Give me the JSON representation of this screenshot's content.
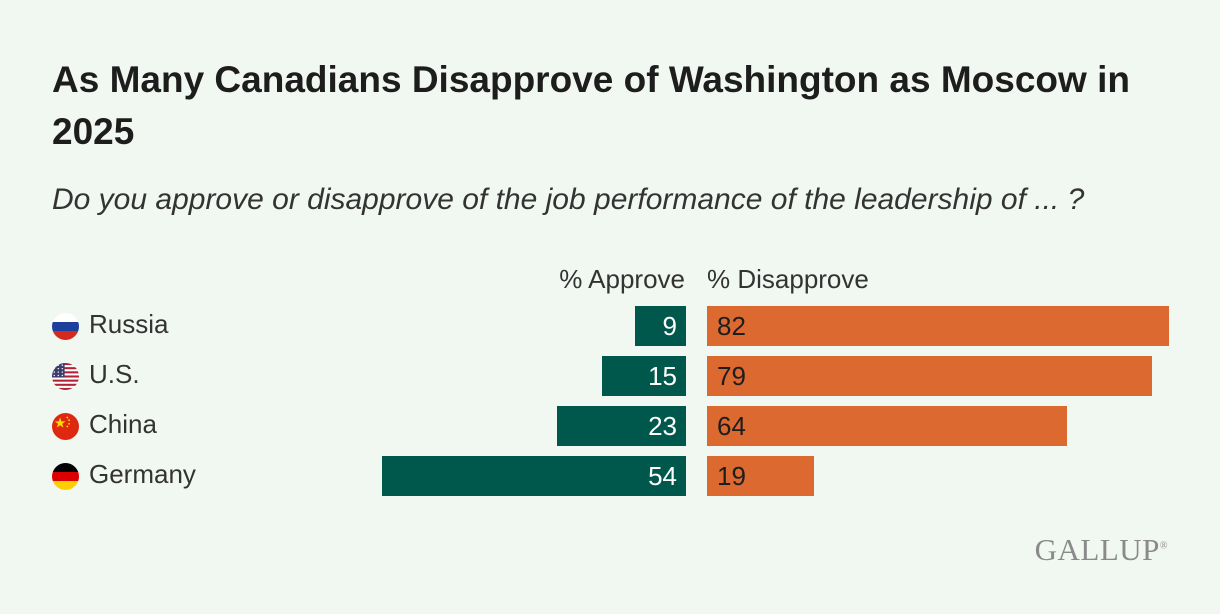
{
  "title": "As Many Canadians Disapprove of Washington as Moscow in 2025",
  "subtitle": "Do you approve or disapprove of the job performance of the leadership of ... ?",
  "brand": "GALLUP",
  "colors": {
    "approve": "#00574c",
    "disapprove": "#dc6930",
    "background": "#f1f7f1"
  },
  "chart_data": {
    "type": "bar",
    "orientation": "horizontal-diverging",
    "title": "As Many Canadians Disapprove of Washington as Moscow in 2025",
    "subtitle": "Do you approve or disapprove of the job performance of the leadership of ... ?",
    "categories": [
      "Russia",
      "U.S.",
      "China",
      "Germany"
    ],
    "flag_icons": [
      "russia-flag-icon",
      "us-flag-icon",
      "china-flag-icon",
      "germany-flag-icon"
    ],
    "series": [
      {
        "name": "% Approve",
        "values": [
          9,
          15,
          23,
          54
        ],
        "color": "#00574c"
      },
      {
        "name": "% Disapprove",
        "values": [
          82,
          79,
          64,
          19
        ],
        "color": "#dc6930"
      }
    ],
    "xlim": [
      0,
      100
    ]
  }
}
